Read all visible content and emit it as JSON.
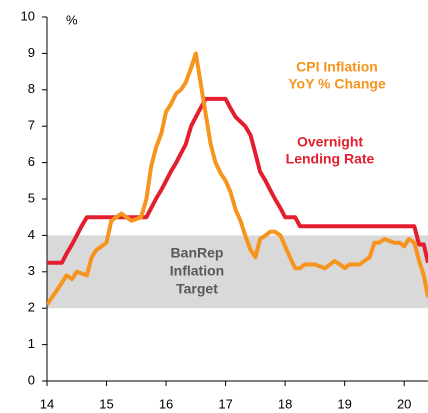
{
  "chart_data": {
    "type": "line",
    "y_label": "%",
    "xlim": [
      14,
      20.4
    ],
    "xticks": [
      14,
      15,
      16,
      17,
      18,
      19,
      20
    ],
    "ylim": [
      0,
      10
    ],
    "yticks": [
      0,
      1,
      2,
      3,
      4,
      5,
      6,
      7,
      8,
      9,
      10
    ],
    "target_band": {
      "label": [
        "BanRep",
        "Inflation",
        "Target"
      ],
      "range": [
        2,
        4
      ],
      "color": "#d9d9d9"
    },
    "series": [
      {
        "name": [
          "Overnight",
          "Lending Rate"
        ],
        "color": "#e31e2d",
        "x": [
          14.0,
          14.25,
          14.33,
          14.42,
          14.5,
          14.58,
          14.67,
          15.67,
          15.75,
          15.83,
          15.92,
          16.0,
          16.08,
          16.17,
          16.25,
          16.33,
          16.42,
          16.5,
          16.58,
          16.67,
          17.0,
          17.08,
          17.17,
          17.33,
          17.42,
          17.5,
          17.58,
          17.67,
          17.75,
          17.83,
          17.92,
          18.0,
          18.17,
          18.25,
          20.17,
          20.25,
          20.33,
          20.4
        ],
        "values": [
          3.25,
          3.25,
          3.5,
          3.75,
          4.0,
          4.25,
          4.5,
          4.5,
          4.75,
          5.0,
          5.25,
          5.5,
          5.75,
          6.0,
          6.25,
          6.5,
          7.0,
          7.25,
          7.5,
          7.75,
          7.75,
          7.5,
          7.25,
          7.0,
          6.75,
          6.25,
          5.75,
          5.5,
          5.25,
          5.0,
          4.75,
          4.5,
          4.5,
          4.25,
          4.25,
          3.75,
          3.75,
          3.25
        ]
      },
      {
        "name": [
          "CPI Inflation",
          "YoY % Change"
        ],
        "color": "#f7941d",
        "x": [
          14.0,
          14.17,
          14.33,
          14.42,
          14.5,
          14.67,
          14.75,
          14.83,
          15.0,
          15.08,
          15.25,
          15.42,
          15.58,
          15.67,
          15.75,
          15.83,
          15.92,
          16.0,
          16.08,
          16.17,
          16.25,
          16.33,
          16.42,
          16.5,
          16.58,
          16.67,
          16.75,
          16.83,
          16.92,
          17.0,
          17.08,
          17.17,
          17.25,
          17.33,
          17.42,
          17.5,
          17.58,
          17.67,
          17.75,
          17.83,
          17.92,
          18.0,
          18.08,
          18.17,
          18.25,
          18.33,
          18.5,
          18.67,
          18.83,
          18.92,
          19.0,
          19.08,
          19.17,
          19.25,
          19.33,
          19.42,
          19.5,
          19.58,
          19.67,
          19.83,
          19.92,
          20.0,
          20.08,
          20.17,
          20.25,
          20.33,
          20.4
        ],
        "values": [
          2.1,
          2.5,
          2.9,
          2.8,
          3.0,
          2.9,
          3.4,
          3.6,
          3.8,
          4.4,
          4.6,
          4.4,
          4.5,
          5.0,
          5.9,
          6.4,
          6.8,
          7.4,
          7.6,
          7.9,
          8.0,
          8.2,
          8.6,
          9.0,
          8.2,
          7.3,
          6.5,
          6.0,
          5.7,
          5.5,
          5.2,
          4.7,
          4.4,
          4.0,
          3.6,
          3.4,
          3.9,
          4.0,
          4.1,
          4.1,
          4.0,
          3.7,
          3.4,
          3.1,
          3.1,
          3.2,
          3.2,
          3.1,
          3.3,
          3.2,
          3.1,
          3.2,
          3.2,
          3.2,
          3.3,
          3.4,
          3.8,
          3.8,
          3.9,
          3.8,
          3.8,
          3.7,
          3.9,
          3.8,
          3.3,
          2.9,
          2.3
        ]
      }
    ],
    "series_label_positions": null
  }
}
